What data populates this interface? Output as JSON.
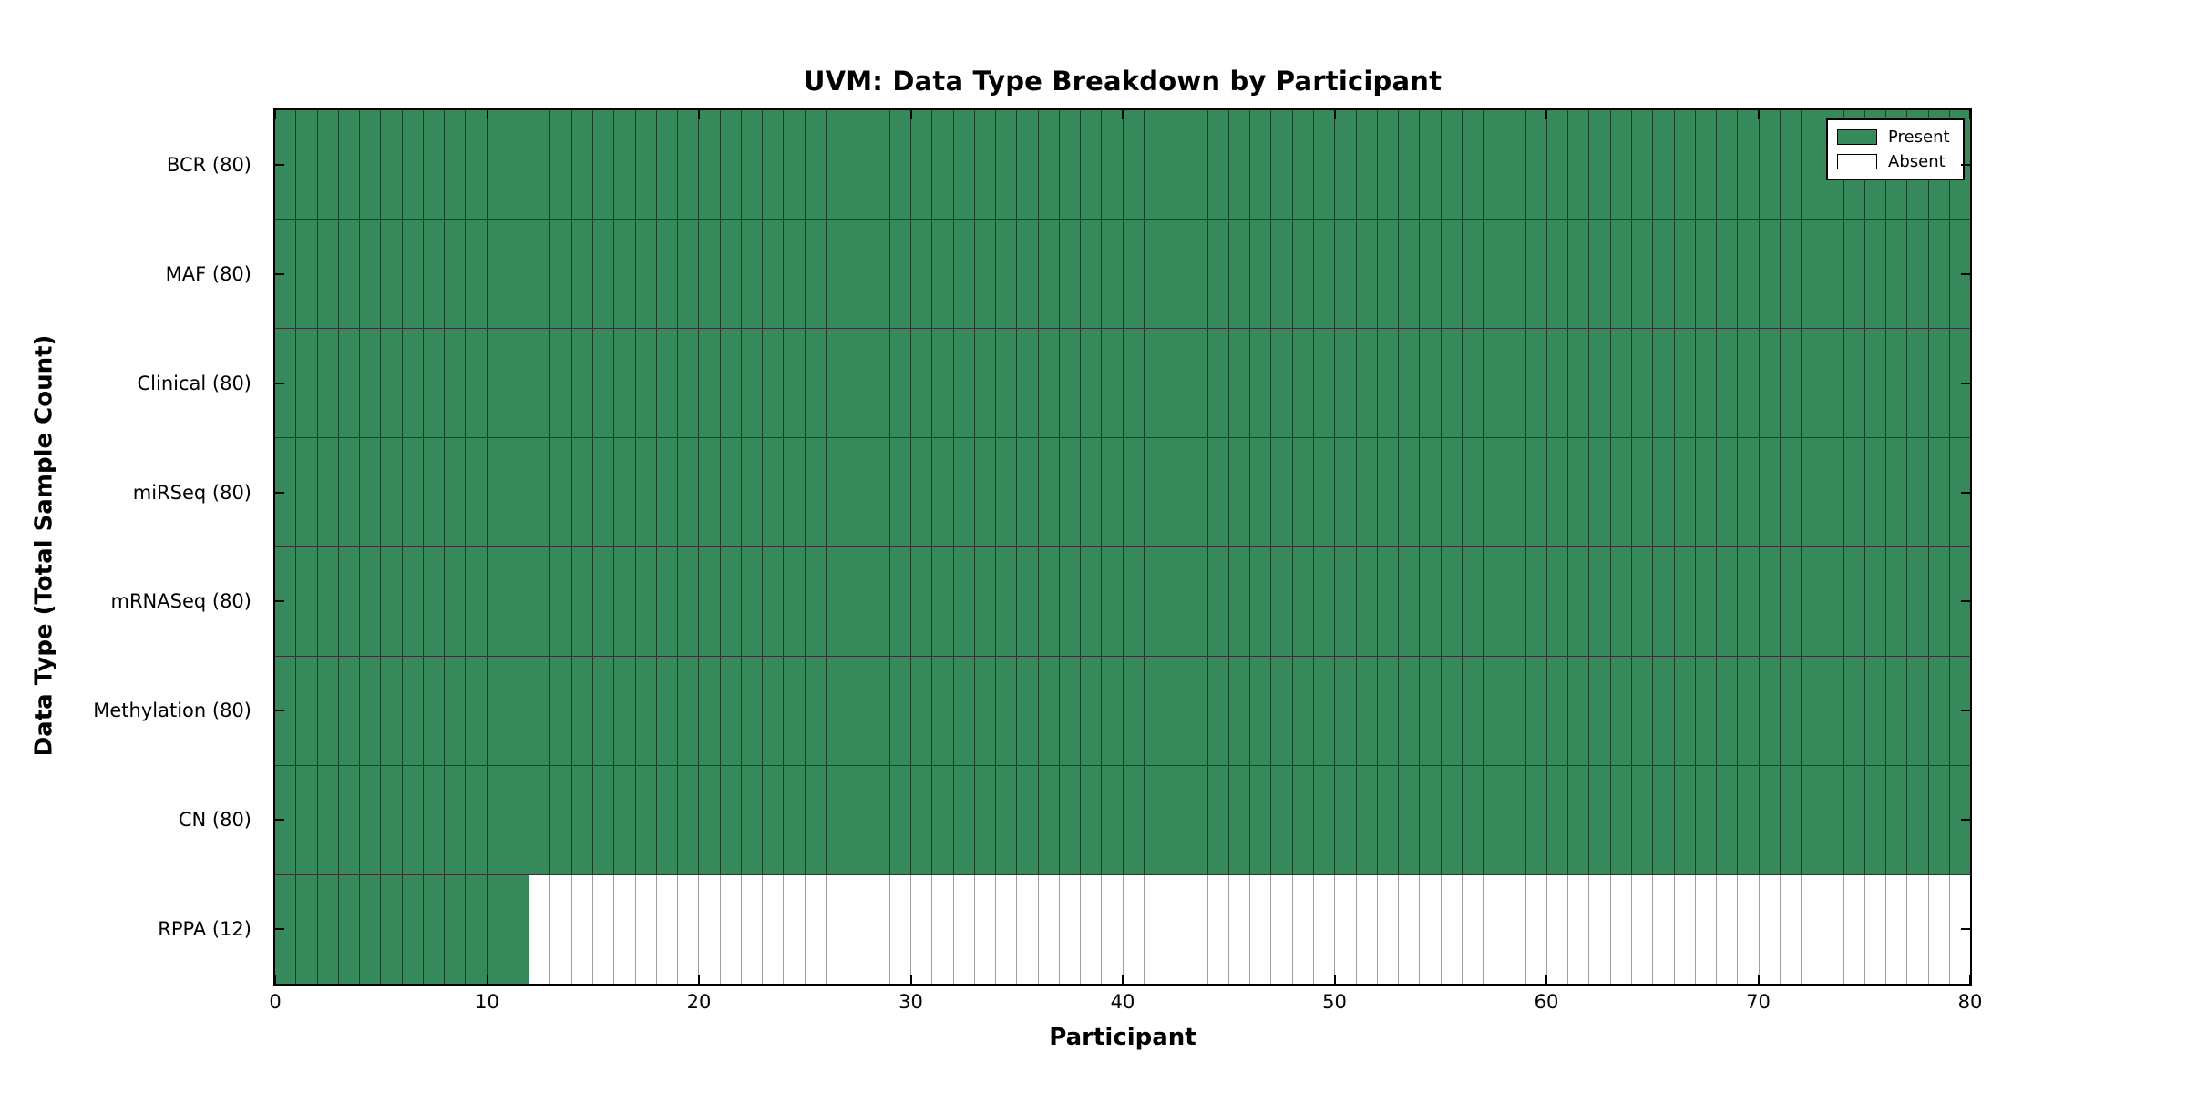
{
  "chart_data": {
    "type": "heatmap",
    "title": "UVM: Data Type Breakdown by Participant",
    "xlabel": "Participant",
    "ylabel": "Data Type (Total Sample Count)",
    "xlim": [
      0,
      80
    ],
    "x_ticks": [
      0,
      10,
      20,
      30,
      40,
      50,
      60,
      70,
      80
    ],
    "participants_total": 80,
    "rows": [
      {
        "label": "BCR (80)",
        "data_type": "BCR",
        "present_count": 80
      },
      {
        "label": "MAF (80)",
        "data_type": "MAF",
        "present_count": 80
      },
      {
        "label": "Clinical (80)",
        "data_type": "Clinical",
        "present_count": 80
      },
      {
        "label": "miRSeq (80)",
        "data_type": "miRSeq",
        "present_count": 80
      },
      {
        "label": "mRNASeq (80)",
        "data_type": "mRNASeq",
        "present_count": 80
      },
      {
        "label": "Methylation (80)",
        "data_type": "Methylation",
        "present_count": 80
      },
      {
        "label": "CN (80)",
        "data_type": "CN",
        "present_count": 80
      },
      {
        "label": "RPPA (12)",
        "data_type": "RPPA",
        "present_count": 12
      }
    ],
    "legend": {
      "position": "upper-right",
      "items": [
        {
          "label": "Present",
          "color": "#35895a"
        },
        {
          "label": "Absent",
          "color": "#ffffff"
        }
      ]
    },
    "colors": {
      "present": "#35895a",
      "absent": "#ffffff",
      "grid": "#000000",
      "background": "#ffffff"
    },
    "grid": true
  }
}
